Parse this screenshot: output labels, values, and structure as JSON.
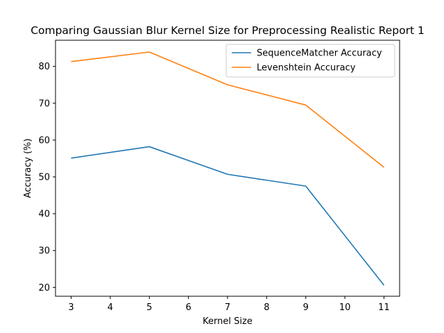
{
  "chart_data": {
    "type": "line",
    "title": "Comparing Gaussian Blur Kernel Size for Preprocessing Realistic Report 1",
    "xlabel": "Kernel Size",
    "ylabel": "Accuracy (%)",
    "x": [
      3,
      5,
      7,
      9,
      11
    ],
    "xticks": [
      3,
      4,
      5,
      6,
      7,
      8,
      9,
      10,
      11
    ],
    "yticks": [
      20,
      30,
      40,
      50,
      60,
      70,
      80
    ],
    "xlim": [
      2.6,
      11.4
    ],
    "ylim": [
      17.6,
      87.1
    ],
    "grid": false,
    "legend_position": "upper right",
    "series": [
      {
        "name": "SequenceMatcher Accuracy",
        "color": "#1f77b4",
        "values": [
          55.1,
          58.2,
          50.7,
          47.5,
          20.6
        ]
      },
      {
        "name": "Levenshtein Accuracy",
        "color": "#ff7f0e",
        "values": [
          81.3,
          83.9,
          75.0,
          69.5,
          52.6
        ]
      }
    ]
  }
}
